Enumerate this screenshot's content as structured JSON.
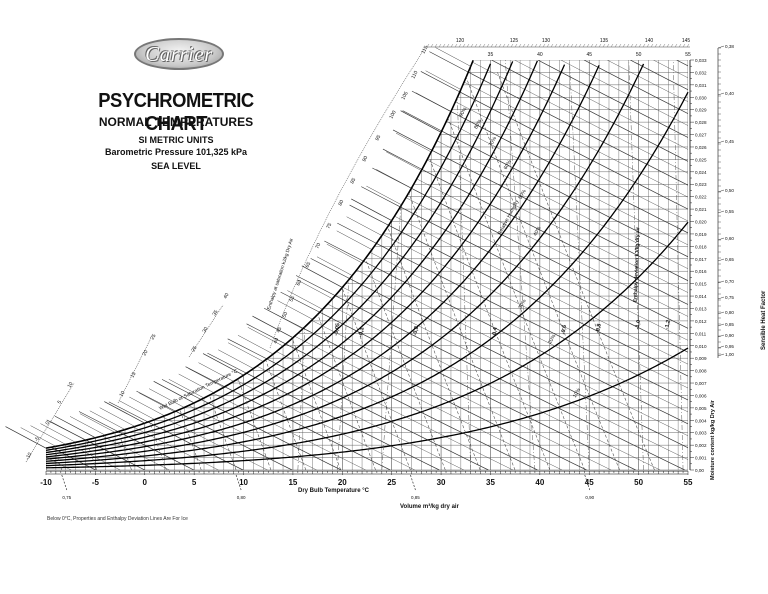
{
  "header": {
    "logo_text": "Carrier",
    "title": "PSYCHROMETRIC CHART",
    "subtitle": "NORMAL TEMPERATURES",
    "units": "SI METRIC UNITS",
    "pressure": "Barometric Pressure 101,325 kPa",
    "altitude": "SEA LEVEL"
  },
  "footnote": "Below 0°C, Properties and Enthalpy Deviation Lines Are For Ice",
  "axes": {
    "x_label": "Dry Bulb Temperature  °C",
    "volume_label": "Volume m³/kg dry air",
    "y_label": "Moisture content  kg/kg Dry Air",
    "shf_label": "Sensible Heat Factor",
    "enthalpy_label": "Enthalpy at saturation  kJ/kg Dry Air",
    "wet_bulb_label": "Wet Bulb or Saturation Temperature  °C",
    "enthalpy_dev_label": "Enthalpy deviation  kJ/kg dry air",
    "rh_label": "Relative Humidity"
  },
  "chart_data": {
    "type": "line",
    "title": "PSYCHROMETRIC CHART - NORMAL TEMPERATURES",
    "xlabel": "Dry Bulb Temperature °C",
    "ylabel": "Moisture content kg/kg Dry Air",
    "xlim": [
      -10,
      55
    ],
    "ylim": [
      0.0,
      0.033
    ],
    "grid": true,
    "x_ticks": [
      -10,
      -5,
      0,
      5,
      10,
      15,
      20,
      25,
      30,
      35,
      40,
      45,
      50,
      55
    ],
    "y_ticks": [
      "0,00",
      "0,001",
      "0,002",
      "0,003",
      "0,004",
      "0,005",
      "0,006",
      "0,007",
      "0,008",
      "0,009",
      "0,010",
      "0,011",
      "0,012",
      "0,013",
      "0,014",
      "0,015",
      "0,016",
      "0,017",
      "0,018",
      "0,019",
      "0,020",
      "0,021",
      "0,022",
      "0,023",
      "0,024",
      "0,025",
      "0,026",
      "0,027",
      "0,028",
      "0,029",
      "0,030",
      "0,031",
      "0,032",
      "0,033"
    ],
    "top_db_ticks": [
      35,
      40,
      45,
      50,
      55
    ],
    "top_enthalpy_ticks": [
      115,
      120,
      125,
      130,
      135,
      140,
      145
    ],
    "enthalpy_scale_ticks": [
      0,
      5,
      10,
      15,
      20,
      25,
      30,
      35,
      40,
      45,
      50,
      55,
      60,
      65,
      70,
      75,
      80,
      85,
      90,
      95,
      100,
      105,
      110,
      115
    ],
    "wet_bulb_scale_ticks": [
      -10,
      -5,
      0,
      5,
      10,
      15,
      20,
      25,
      30,
      35,
      40
    ],
    "volume_ticks": [
      "0,75",
      "0,80",
      "0,85",
      "0,90"
    ],
    "shf_ticks": [
      "0,38",
      "0,40",
      "0,45",
      "0,50",
      "0,55",
      "0,60",
      "0,65",
      "0,70",
      "0,75",
      "0,80",
      "0,85",
      "0,90",
      "0,95",
      "1,00"
    ],
    "rh_curves_percent": [
      10,
      20,
      30,
      40,
      50,
      60,
      70,
      80,
      90,
      100
    ],
    "enthalpy_deviation_labels": [
      "-0,05",
      "-0,1",
      "-0,2",
      "-0,4",
      "-0,6",
      "-0,8",
      "-1,0",
      "-1,2"
    ],
    "saturation_curve": {
      "x": [
        -10,
        -5,
        0,
        5,
        10,
        15,
        20,
        25,
        30,
        32
      ],
      "y": [
        0.0016,
        0.0025,
        0.0038,
        0.0054,
        0.0077,
        0.0107,
        0.0148,
        0.0201,
        0.0273,
        0.0306
      ]
    }
  }
}
